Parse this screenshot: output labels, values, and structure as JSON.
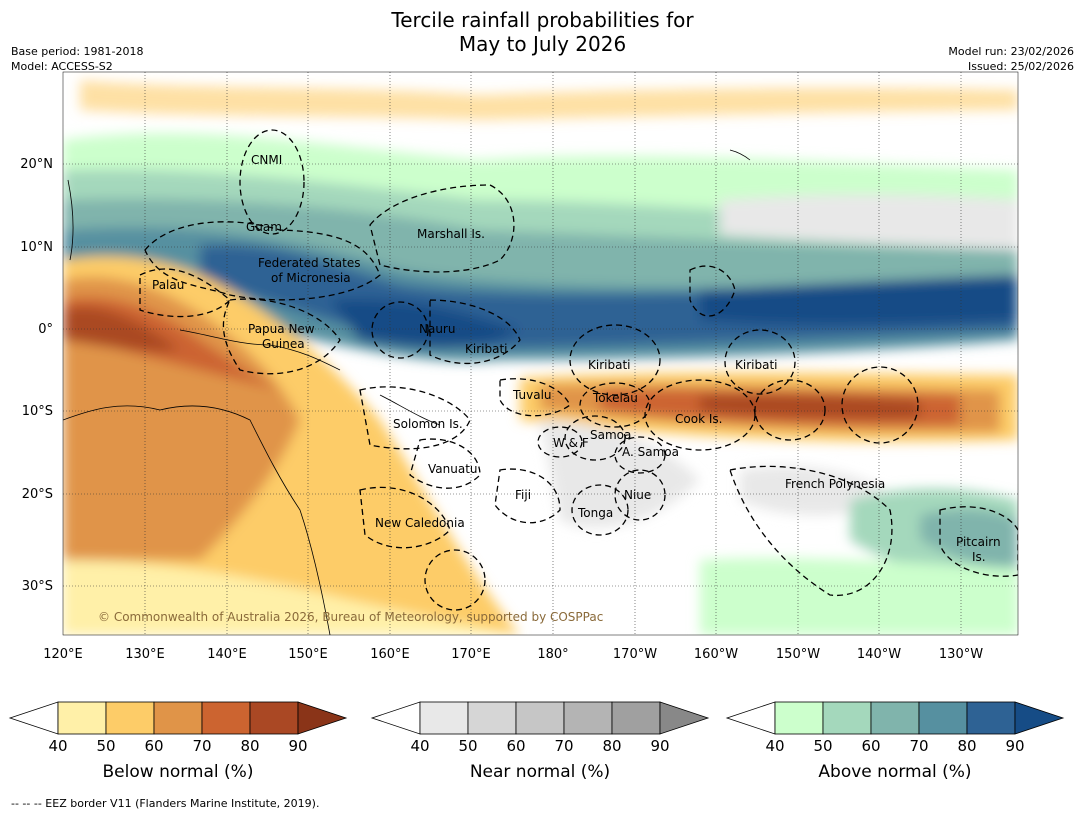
{
  "header": {
    "title_line1": "Tercile rainfall probabilities for",
    "title_line2": "May to July 2026",
    "base_period": "Base period: 1981-2018",
    "model": "Model: ACCESS-S2",
    "model_run": "Model run: 23/02/2026",
    "issued": "Issued: 25/02/2026"
  },
  "map": {
    "lon_ticks": [
      "120°E",
      "130°E",
      "140°E",
      "150°E",
      "160°E",
      "170°E",
      "180°",
      "170°W",
      "160°W",
      "150°W",
      "140°W",
      "130°W"
    ],
    "lat_ticks": [
      "20°N",
      "10°N",
      "0°",
      "10°S",
      "20°S",
      "30°S"
    ],
    "copyright": "© Commonwealth of Australia 2026, Bureau of Meteorology, supported by COSPPac",
    "regions": [
      {
        "id": "cnmi",
        "label": "CNMI"
      },
      {
        "id": "guam",
        "label": "Guam"
      },
      {
        "id": "marshall",
        "label": "Marshall Is."
      },
      {
        "id": "fsm1",
        "label": "Federated States"
      },
      {
        "id": "fsm2",
        "label": "of Micronesia"
      },
      {
        "id": "palau",
        "label": "Palau"
      },
      {
        "id": "png1",
        "label": "Papua New"
      },
      {
        "id": "png2",
        "label": "Guinea"
      },
      {
        "id": "nauru",
        "label": "Nauru"
      },
      {
        "id": "kiribati_w",
        "label": "Kiribati"
      },
      {
        "id": "kiribati_c",
        "label": "Kiribati"
      },
      {
        "id": "kiribati_e",
        "label": "Kiribati"
      },
      {
        "id": "tuvalu",
        "label": "Tuvalu"
      },
      {
        "id": "tokelau",
        "label": "Tokelau"
      },
      {
        "id": "cook",
        "label": "Cook Is."
      },
      {
        "id": "solomon",
        "label": "Solomon Is."
      },
      {
        "id": "wf",
        "label": "W & F"
      },
      {
        "id": "samoa",
        "label": "Samoa"
      },
      {
        "id": "asamoa",
        "label": "A. Samoa"
      },
      {
        "id": "vanuatu",
        "label": "Vanuatu"
      },
      {
        "id": "fiji",
        "label": "Fiji"
      },
      {
        "id": "niue",
        "label": "Niue"
      },
      {
        "id": "tonga",
        "label": "Tonga"
      },
      {
        "id": "newcal",
        "label": "New Caledonia"
      },
      {
        "id": "frpoly",
        "label": "French Polynesia"
      },
      {
        "id": "pitcairn1",
        "label": "Pitcairn"
      },
      {
        "id": "pitcairn2",
        "label": "Is."
      }
    ]
  },
  "colorbars": [
    {
      "id": "below",
      "title": "Below normal (%)",
      "ticks": [
        "40",
        "50",
        "60",
        "70",
        "80",
        "90"
      ],
      "colors": [
        "#fff0a8",
        "#fdcc68",
        "#e09448",
        "#cc6430",
        "#aa4824",
        "#8a3418"
      ]
    },
    {
      "id": "near",
      "title": "Near normal (%)",
      "ticks": [
        "40",
        "50",
        "60",
        "70",
        "80",
        "90"
      ],
      "colors": [
        "#e8e8e8",
        "#d6d6d6",
        "#c6c6c6",
        "#b4b4b4",
        "#a0a0a0",
        "#888888"
      ]
    },
    {
      "id": "above",
      "title": "Above normal (%)",
      "ticks": [
        "40",
        "50",
        "60",
        "70",
        "80",
        "90"
      ],
      "colors": [
        "#ccffcc",
        "#a4d8bc",
        "#80b4ac",
        "#5690a0",
        "#2e6294",
        "#164c86"
      ]
    }
  ],
  "footnote": "--  --  -- EEZ border V11 (Flanders Marine Institute, 2019)."
}
